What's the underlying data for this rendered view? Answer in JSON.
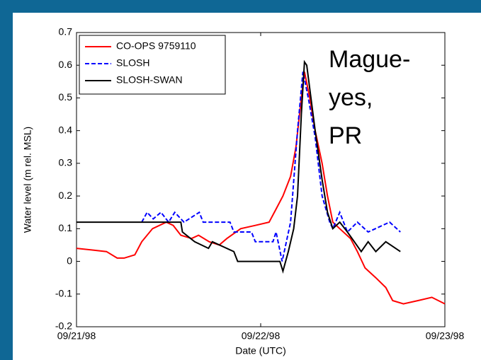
{
  "chart_data": {
    "type": "line",
    "xlabel": "Date (UTC)",
    "ylabel": "Water level (m rel. MSL)",
    "annotation": [
      "Mague-",
      "yes,",
      "PR"
    ],
    "xlim": [
      0,
      48
    ],
    "xticks": [
      {
        "value": 0,
        "label": "09/21/98"
      },
      {
        "value": 24,
        "label": "09/22/98"
      },
      {
        "value": 48,
        "label": "09/23/98"
      }
    ],
    "ylim": [
      -0.2,
      0.7
    ],
    "yticks": [
      {
        "value": -0.2,
        "label": "-0.2"
      },
      {
        "value": -0.1,
        "label": "-0.1"
      },
      0,
      {
        "value": 0.1,
        "label": "0.1"
      },
      {
        "value": 0.2,
        "label": "0.2"
      },
      {
        "value": 0.3,
        "label": "0.3"
      },
      {
        "value": 0.4,
        "label": "0.4"
      },
      {
        "value": 0.5,
        "label": "0.5"
      },
      {
        "value": 0.6,
        "label": "0.6"
      },
      {
        "value": 0.7,
        "label": "0.7"
      }
    ],
    "legend": "upper left",
    "grid": false,
    "series": [
      {
        "name": "CO-OPS 9759110",
        "color": "#ff0000",
        "dash": "solid",
        "x": [
          0,
          3.9,
          5.3,
          6.2,
          7.6,
          8.5,
          9.9,
          11.7,
          12.6,
          13.6,
          15.0,
          15.9,
          17.3,
          18.6,
          19.6,
          21.4,
          23.3,
          25.1,
          26.0,
          26.9,
          27.9,
          28.6,
          29.3,
          29.7,
          30.4,
          31.1,
          32.0,
          32.7,
          33.4,
          34.3,
          35.7,
          36.6,
          37.6,
          39.0,
          40.3,
          41.2,
          42.6,
          44.5,
          46.3,
          48
        ],
        "values": [
          0.04,
          0.03,
          0.01,
          0.01,
          0.02,
          0.06,
          0.1,
          0.12,
          0.11,
          0.08,
          0.07,
          0.08,
          0.06,
          0.05,
          0.07,
          0.1,
          0.11,
          0.12,
          0.16,
          0.2,
          0.26,
          0.35,
          0.5,
          0.58,
          0.5,
          0.4,
          0.3,
          0.2,
          0.12,
          0.1,
          0.07,
          0.03,
          -0.02,
          -0.05,
          -0.08,
          -0.12,
          -0.13,
          -0.12,
          -0.11,
          -0.13
        ]
      },
      {
        "name": "SLOSH",
        "color": "#0000ff",
        "dash": "dashed",
        "x": [
          8.5,
          9.2,
          10,
          11,
          12,
          12.8,
          14,
          16,
          16.5,
          20,
          20.5,
          22.8,
          23.3,
          25.6,
          26,
          26.8,
          27.9,
          28.8,
          29.5,
          30.2,
          31.1,
          32,
          33,
          33.4,
          34.3,
          35.3,
          36.6,
          38,
          40.8,
          42.2
        ],
        "values": [
          0.12,
          0.15,
          0.13,
          0.15,
          0.12,
          0.15,
          0.12,
          0.15,
          0.12,
          0.12,
          0.09,
          0.09,
          0.06,
          0.06,
          0.09,
          0.0,
          0.12,
          0.4,
          0.58,
          0.5,
          0.38,
          0.2,
          0.12,
          0.1,
          0.15,
          0.09,
          0.12,
          0.09,
          0.12,
          0.09
        ]
      },
      {
        "name": "SLOSH-SWAN",
        "color": "#000000",
        "dash": "solid",
        "x": [
          0,
          13.6,
          13.8,
          15.4,
          17.2,
          17.7,
          20.5,
          21,
          26.5,
          26.9,
          27.6,
          28.3,
          28.8,
          29.3,
          29.7,
          30,
          31.1,
          32,
          32.7,
          33.4,
          34.3,
          35.3,
          36.2,
          37.1,
          38,
          39,
          40.3,
          42.2
        ],
        "values": [
          0.12,
          0.12,
          0.09,
          0.06,
          0.04,
          0.06,
          0.03,
          0,
          0,
          -0.03,
          0.03,
          0.1,
          0.2,
          0.45,
          0.61,
          0.6,
          0.4,
          0.25,
          0.15,
          0.1,
          0.12,
          0.09,
          0.06,
          0.03,
          0.06,
          0.03,
          0.06,
          0.03
        ]
      }
    ]
  }
}
